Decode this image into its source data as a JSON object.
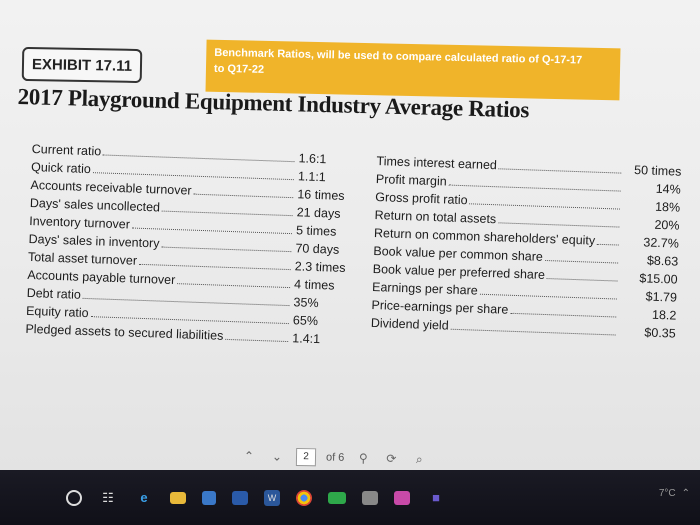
{
  "exhibit_label": "EXHIBIT 17.11",
  "sticky_note": {
    "line1": "Benchmark Ratios, will be used to compare calculated ratio of Q-17-17",
    "line2": "to Q17-22"
  },
  "title": "2017 Playground Equipment Industry Average Ratios",
  "left_ratios": [
    {
      "label": "Current ratio",
      "value": "1.6:1"
    },
    {
      "label": "Quick ratio",
      "value": "1.1:1"
    },
    {
      "label": "Accounts receivable turnover",
      "value": "16 times"
    },
    {
      "label": "Days' sales uncollected",
      "value": "21 days"
    },
    {
      "label": "Inventory turnover",
      "value": "5 times"
    },
    {
      "label": "Days' sales in inventory",
      "value": "70 days"
    },
    {
      "label": "Total asset turnover",
      "value": "2.3 times"
    },
    {
      "label": "Accounts payable turnover",
      "value": "4 times"
    },
    {
      "label": "Debt ratio",
      "value": "35%"
    },
    {
      "label": "Equity ratio",
      "value": "65%"
    },
    {
      "label": "Pledged assets to secured liabilities",
      "value": "1.4:1"
    }
  ],
  "right_ratios": [
    {
      "label": "Times interest earned",
      "value": "50 times"
    },
    {
      "label": "Profit margin",
      "value": "14%"
    },
    {
      "label": "Gross profit ratio",
      "value": "18%"
    },
    {
      "label": "Return on total assets",
      "value": "20%"
    },
    {
      "label": "Return on common shareholders' equity",
      "value": "32.7%"
    },
    {
      "label": "Book value per common share",
      "value": "$8.63"
    },
    {
      "label": "Book value per preferred share",
      "value": "$15.00"
    },
    {
      "label": "Earnings per share",
      "value": "$1.79"
    },
    {
      "label": "Price-earnings per share",
      "value": "18.2"
    },
    {
      "label": "Dividend yield",
      "value": "$0.35"
    }
  ],
  "pager": {
    "current_page": "2",
    "of_label": "of 6"
  },
  "taskbar_icons": [
    "start-circle-icon",
    "task-view-icon",
    "edge-browser-icon",
    "file-explorer-icon",
    "store-icon",
    "camera-app-icon",
    "word-icon",
    "chrome-icon",
    "shopping-app-icon",
    "photos-icon",
    "media-icon",
    "teams-icon"
  ],
  "tray": {
    "temperature": "7°C"
  }
}
